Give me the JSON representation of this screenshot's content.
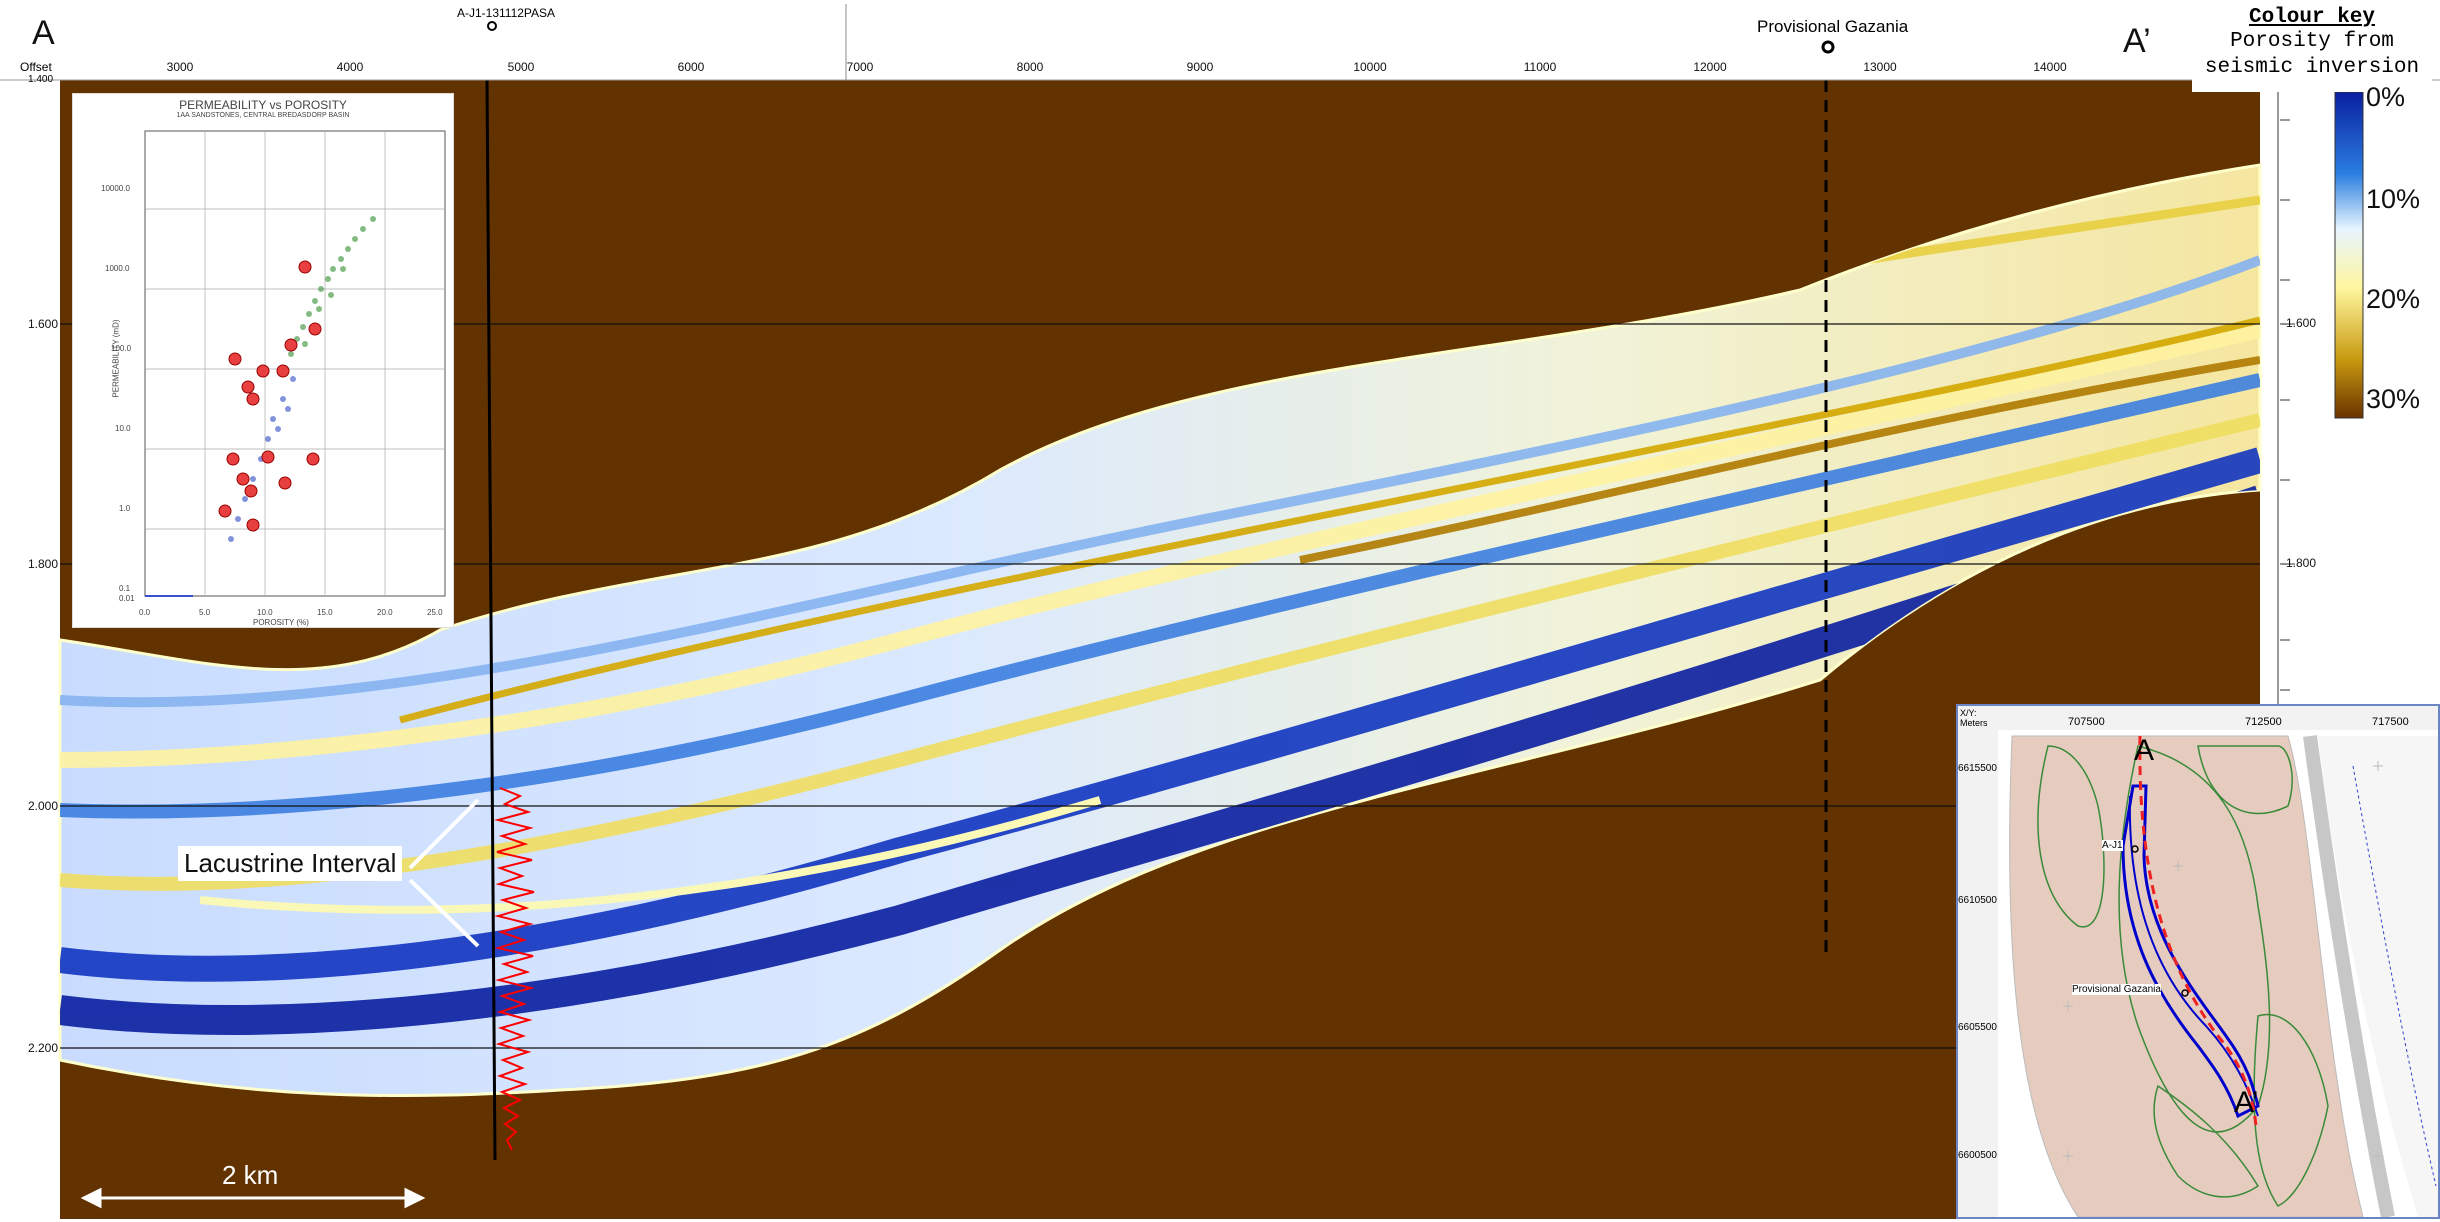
{
  "header": {
    "corner_left": "A",
    "corner_right": "A’",
    "offset_label": "Offset",
    "well_label": "A-J1-131112PASA",
    "provisional_label": "Provisional Gazania",
    "top_depth_label": "1.400"
  },
  "x_ruler_ticks": [
    "3000",
    "4000",
    "5000",
    "6000",
    "7000",
    "8000",
    "9000",
    "10000",
    "11000",
    "12000",
    "13000",
    "14000"
  ],
  "y_ticks_left": [
    "1.600",
    "1.800",
    "2.000",
    "2.200"
  ],
  "y_ticks_right": [
    "-1.600",
    "-1.800"
  ],
  "colour_key": {
    "title": "Colour key",
    "subtitle_line1": "Porosity from",
    "subtitle_line2": "seismic inversion",
    "labels": [
      "0%",
      "10%",
      "20%",
      "30%"
    ],
    "colors": [
      "#0a1fa0",
      "#1f6fd6",
      "#dff0ff",
      "#fdf6a8",
      "#c9a000",
      "#6a3200"
    ]
  },
  "annotations": {
    "lacustrine_label": "Lacustrine Interval",
    "scale_bar_label": "2 km"
  },
  "colors": {
    "background_rock": "#623200",
    "well_log": "#ff0000",
    "seismic_low": "#0a1fa0",
    "seismic_high": "#e8d000"
  },
  "inset_plot": {
    "title": "PERMEABILITY vs POROSITY",
    "subtitle": "1AA SANDSTONES, CENTRAL BREDASDORP BASIN",
    "y_axis_label": "PERMEABILITY (mD)",
    "x_axis_label": "POROSITY (%)",
    "y_ticks": [
      "10000.0",
      "1000.0",
      "100.0",
      "10.0",
      "1.0",
      "0.1",
      "0.01"
    ],
    "x_ticks": [
      "0.0",
      "5.0",
      "10.0",
      "15.0",
      "20.0",
      "25.0"
    ]
  },
  "inset_map": {
    "corner_label": "X/Y: Meters",
    "x_ticks": [
      "707500",
      "712500",
      "717500"
    ],
    "y_ticks": [
      "6615500",
      "6610500",
      "6605500",
      "6600500"
    ],
    "label_A": "A",
    "label_A_prime": "A’",
    "label_AJ1": "A-J1",
    "label_provisional": "Provisional Gazania"
  }
}
